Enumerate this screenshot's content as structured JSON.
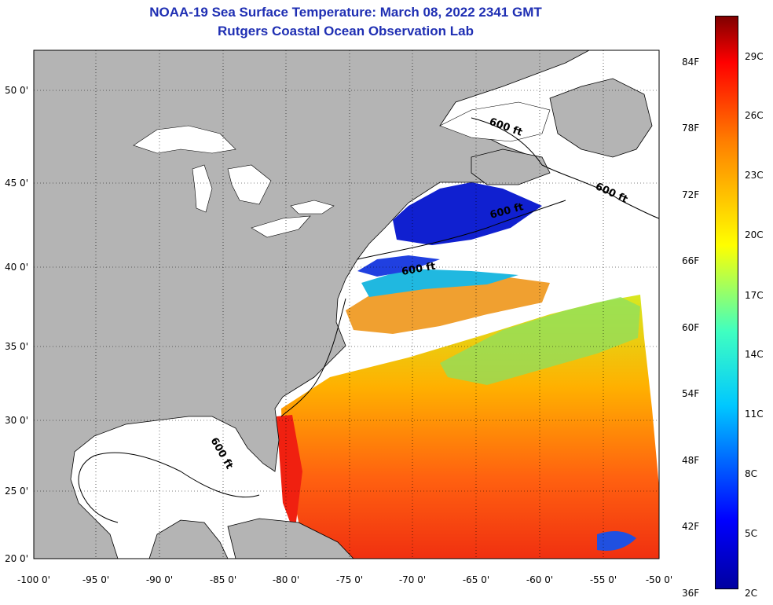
{
  "header": {
    "title": "NOAA-19 Sea Surface Temperature:  March 08, 2022 2341 GMT",
    "subtitle": "Rutgers Coastal Ocean Observation Lab"
  },
  "axes": {
    "lon_labels": [
      "-100 0'",
      "-95 0'",
      "-90 0'",
      "-85 0'",
      "-80 0'",
      "-75 0'",
      "-70 0'",
      "-65 0'",
      "-60 0'",
      "-55 0'",
      "-50 0'"
    ],
    "lat_labels": [
      "50 0'",
      "45 0'",
      "40 0'",
      "35 0'",
      "30 0'",
      "25 0'",
      "20 0'"
    ]
  },
  "contour_label": "600 ft",
  "colorbar": {
    "fahrenheit": [
      "84F",
      "78F",
      "72F",
      "66F",
      "60F",
      "54F",
      "48F",
      "42F",
      "36F"
    ],
    "celsius": [
      "29C",
      "26C",
      "23C",
      "20C",
      "17C",
      "14C",
      "11C",
      "8C",
      "5C",
      "2C"
    ]
  },
  "colors": {
    "land": "#b4b4b4",
    "cloud": "#ffffff",
    "title": "#1f2fb3",
    "scale_low": "#000080",
    "scale_high": "#800000"
  }
}
